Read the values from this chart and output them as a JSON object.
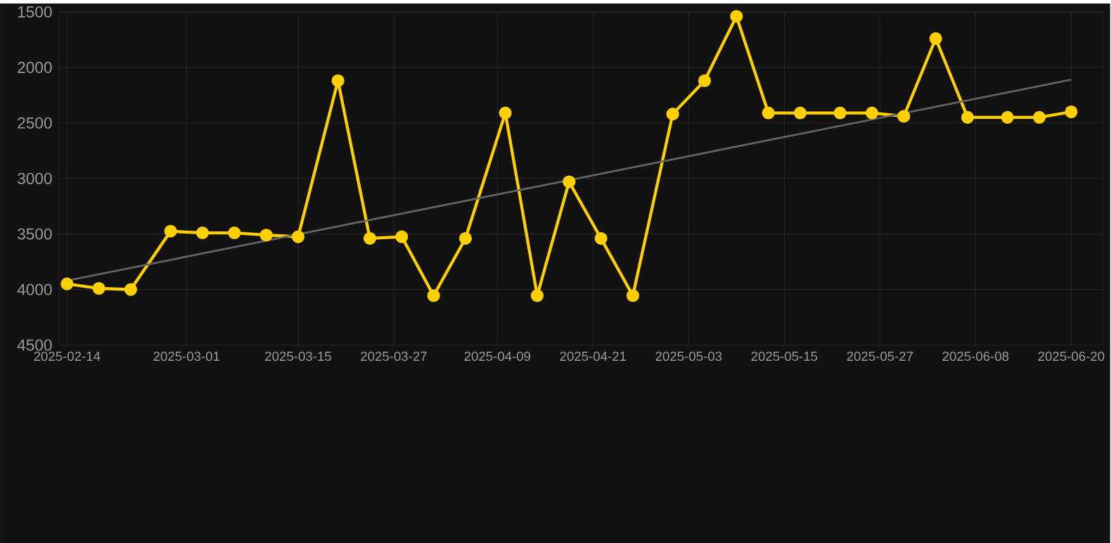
{
  "chart_data": {
    "type": "line",
    "x": [
      "2025-02-14",
      "2025-02-18",
      "2025-02-22",
      "2025-02-27",
      "2025-03-03",
      "2025-03-07",
      "2025-03-11",
      "2025-03-15",
      "2025-03-20",
      "2025-03-24",
      "2025-03-28",
      "2025-04-01",
      "2025-04-05",
      "2025-04-10",
      "2025-04-14",
      "2025-04-18",
      "2025-04-22",
      "2025-04-26",
      "2025-05-01",
      "2025-05-05",
      "2025-05-09",
      "2025-05-13",
      "2025-05-17",
      "2025-05-22",
      "2025-05-26",
      "2025-05-30",
      "2025-06-03",
      "2025-06-07",
      "2025-06-12",
      "2025-06-16",
      "2025-06-20"
    ],
    "series": [
      {
        "color": "#ffd000",
        "marker": "circle",
        "values": [
          3950,
          3990,
          4000,
          3475,
          3490,
          3490,
          3510,
          3525,
          2120,
          3540,
          3525,
          4055,
          3540,
          2410,
          4055,
          3030,
          3540,
          4055,
          2420,
          2120,
          1540,
          2410,
          2410,
          2410,
          2410,
          2440,
          1740,
          2450,
          2450,
          2450,
          2400
        ]
      },
      {
        "type": "line",
        "color": "#666666",
        "marker": "none",
        "x": [
          "2025-02-14",
          "2025-06-20"
        ],
        "values": [
          3920,
          2110
        ]
      }
    ],
    "xlim": [
      "2025-02-13",
      "2025-06-24"
    ],
    "xticks": [
      "2025-02-14",
      "2025-03-01",
      "2025-03-15",
      "2025-03-27",
      "2025-04-09",
      "2025-04-21",
      "2025-05-03",
      "2025-05-15",
      "2025-05-27",
      "2025-06-08",
      "2025-06-20"
    ],
    "ylim": [
      4500,
      1500
    ],
    "yticks": [
      1500,
      2000,
      2500,
      3000,
      3500,
      4000,
      4500
    ],
    "grid": true,
    "line_style": "solid"
  }
}
